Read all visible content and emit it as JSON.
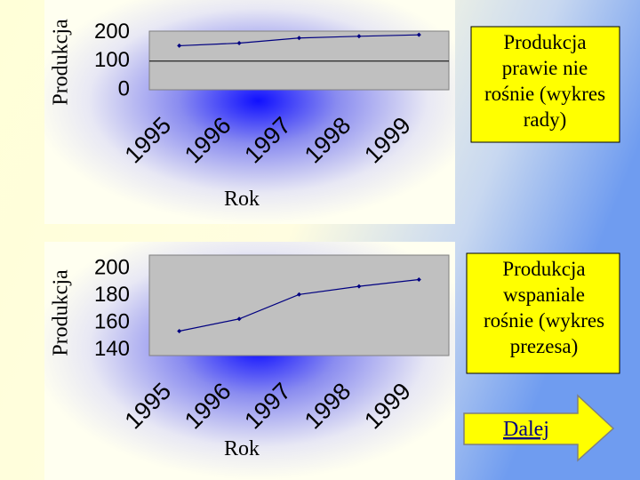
{
  "chart_data": [
    {
      "type": "line",
      "y_label": "Produkcja",
      "x_label": "Rok",
      "categories": [
        "1995",
        "1996",
        "1997",
        "1998",
        "1999"
      ],
      "values": [
        154,
        163,
        181,
        187,
        192
      ],
      "color": "#000080",
      "ylim": [
        0,
        205
      ],
      "yticks": [
        0,
        100,
        200
      ],
      "grid": true,
      "annotation": "Produkcja prawie nie rośnie (wykres rady)"
    },
    {
      "type": "line",
      "y_label": "Produkcja",
      "x_label": "Rok",
      "categories": [
        "1995",
        "1996",
        "1997",
        "1998",
        "1999"
      ],
      "values": [
        154,
        163,
        181,
        187,
        192
      ],
      "color": "#000080",
      "ylim": [
        136,
        210
      ],
      "yticks": [
        140,
        160,
        180,
        200
      ],
      "grid": false,
      "annotation": "Produkcja wspaniale rośnie (wykres prezesa)"
    }
  ],
  "nav_button": "Dalej"
}
